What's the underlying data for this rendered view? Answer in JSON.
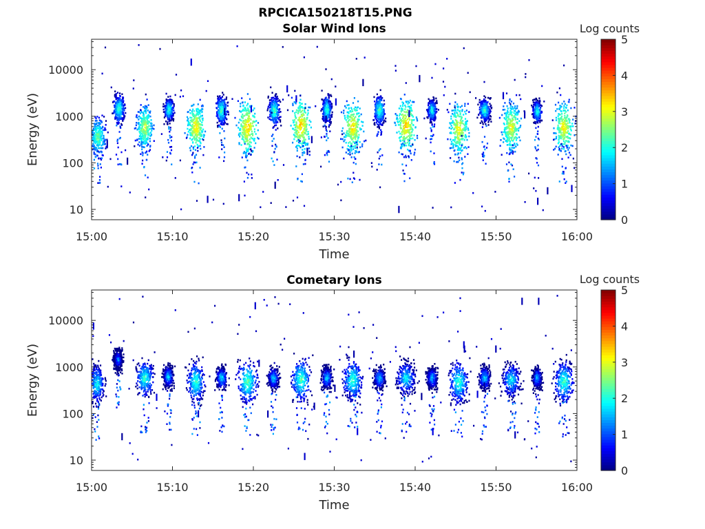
{
  "figure": {
    "title": "RPCICA150218T15.PNG"
  },
  "chart_data": [
    {
      "type": "heatmap",
      "title": "Solar Wind Ions",
      "xlabel": "Time",
      "ylabel": "Energy (eV)",
      "x_ticks": [
        "15:00",
        "15:10",
        "15:20",
        "15:30",
        "15:40",
        "15:50",
        "16:00"
      ],
      "x_range": [
        "15:00",
        "16:00"
      ],
      "y_scale": "log",
      "y_ticks": [
        10,
        100,
        1000,
        10000
      ],
      "y_range": [
        6,
        45000
      ],
      "colorbar": {
        "label": "Log counts",
        "range": [
          0,
          5
        ],
        "ticks": [
          0,
          1,
          2,
          3,
          4,
          5
        ],
        "colormap": "jet"
      },
      "grid": false,
      "clusters": [
        {
          "time_min": 0.7,
          "energy_ev": 380,
          "peak": 2.6,
          "t_span": 0.9,
          "e_span": 0.35
        },
        {
          "time_min": 3.3,
          "energy_ev": 1500,
          "peak": 2.4,
          "t_span": 0.6,
          "e_span": 0.25
        },
        {
          "time_min": 6.5,
          "energy_ev": 600,
          "peak": 3.0,
          "t_span": 0.9,
          "e_span": 0.4
        },
        {
          "time_min": 9.5,
          "energy_ev": 1450,
          "peak": 2.3,
          "t_span": 0.5,
          "e_span": 0.2
        },
        {
          "time_min": 12.8,
          "energy_ev": 600,
          "peak": 3.4,
          "t_span": 0.9,
          "e_span": 0.4
        },
        {
          "time_min": 16.0,
          "energy_ev": 1400,
          "peak": 2.4,
          "t_span": 0.6,
          "e_span": 0.25
        },
        {
          "time_min": 19.2,
          "energy_ev": 600,
          "peak": 3.5,
          "t_span": 1.0,
          "e_span": 0.45
        },
        {
          "time_min": 22.5,
          "energy_ev": 1350,
          "peak": 2.4,
          "t_span": 0.6,
          "e_span": 0.25
        },
        {
          "time_min": 25.8,
          "energy_ev": 650,
          "peak": 3.5,
          "t_span": 1.0,
          "e_span": 0.45
        },
        {
          "time_min": 29.0,
          "energy_ev": 1450,
          "peak": 2.3,
          "t_span": 0.5,
          "e_span": 0.25
        },
        {
          "time_min": 32.2,
          "energy_ev": 600,
          "peak": 3.4,
          "t_span": 1.0,
          "e_span": 0.45
        },
        {
          "time_min": 35.5,
          "energy_ev": 1400,
          "peak": 2.4,
          "t_span": 0.6,
          "e_span": 0.25
        },
        {
          "time_min": 38.8,
          "energy_ev": 650,
          "peak": 3.5,
          "t_span": 1.0,
          "e_span": 0.45
        },
        {
          "time_min": 42.0,
          "energy_ev": 1400,
          "peak": 2.2,
          "t_span": 0.5,
          "e_span": 0.2
        },
        {
          "time_min": 45.3,
          "energy_ev": 550,
          "peak": 3.3,
          "t_span": 1.0,
          "e_span": 0.45
        },
        {
          "time_min": 48.5,
          "energy_ev": 1400,
          "peak": 2.3,
          "t_span": 0.6,
          "e_span": 0.2
        },
        {
          "time_min": 51.8,
          "energy_ev": 600,
          "peak": 3.2,
          "t_span": 1.0,
          "e_span": 0.45
        },
        {
          "time_min": 55.0,
          "energy_ev": 1300,
          "peak": 2.2,
          "t_span": 0.5,
          "e_span": 0.2
        },
        {
          "time_min": 58.3,
          "energy_ev": 600,
          "peak": 3.3,
          "t_span": 1.0,
          "e_span": 0.45
        }
      ]
    },
    {
      "type": "heatmap",
      "title": "Cometary Ions",
      "xlabel": "Time",
      "ylabel": "Energy (eV)",
      "x_ticks": [
        "15:00",
        "15:10",
        "15:20",
        "15:30",
        "15:40",
        "15:50",
        "16:00"
      ],
      "x_range": [
        "15:00",
        "16:00"
      ],
      "y_scale": "log",
      "y_ticks": [
        10,
        100,
        1000,
        10000
      ],
      "y_range": [
        6,
        45000
      ],
      "colorbar": {
        "label": "Log counts",
        "range": [
          0,
          5
        ],
        "ticks": [
          0,
          1,
          2,
          3,
          4,
          5
        ],
        "colormap": "jet"
      },
      "grid": false,
      "clusters": [
        {
          "time_min": 0.6,
          "energy_ev": 450,
          "peak": 2.1,
          "t_span": 0.8,
          "e_span": 0.35
        },
        {
          "time_min": 3.2,
          "energy_ev": 1500,
          "peak": 1.4,
          "t_span": 0.5,
          "e_span": 0.2
        },
        {
          "time_min": 6.5,
          "energy_ev": 600,
          "peak": 2.3,
          "t_span": 0.9,
          "e_span": 0.3
        },
        {
          "time_min": 9.4,
          "energy_ev": 650,
          "peak": 1.8,
          "t_span": 0.6,
          "e_span": 0.2
        },
        {
          "time_min": 12.8,
          "energy_ev": 500,
          "peak": 2.3,
          "t_span": 0.9,
          "e_span": 0.35
        },
        {
          "time_min": 16.0,
          "energy_ev": 600,
          "peak": 1.9,
          "t_span": 0.6,
          "e_span": 0.2
        },
        {
          "time_min": 19.2,
          "energy_ev": 500,
          "peak": 2.5,
          "t_span": 1.0,
          "e_span": 0.35
        },
        {
          "time_min": 22.4,
          "energy_ev": 600,
          "peak": 1.8,
          "t_span": 0.6,
          "e_span": 0.2
        },
        {
          "time_min": 25.8,
          "energy_ev": 550,
          "peak": 2.4,
          "t_span": 1.0,
          "e_span": 0.35
        },
        {
          "time_min": 29.0,
          "energy_ev": 600,
          "peak": 1.8,
          "t_span": 0.6,
          "e_span": 0.2
        },
        {
          "time_min": 32.2,
          "energy_ev": 550,
          "peak": 2.3,
          "t_span": 1.0,
          "e_span": 0.35
        },
        {
          "time_min": 35.5,
          "energy_ev": 600,
          "peak": 1.8,
          "t_span": 0.6,
          "e_span": 0.2
        },
        {
          "time_min": 38.8,
          "energy_ev": 600,
          "peak": 2.0,
          "t_span": 1.0,
          "e_span": 0.3
        },
        {
          "time_min": 42.0,
          "energy_ev": 600,
          "peak": 1.7,
          "t_span": 0.6,
          "e_span": 0.2
        },
        {
          "time_min": 45.3,
          "energy_ev": 500,
          "peak": 2.3,
          "t_span": 1.0,
          "e_span": 0.35
        },
        {
          "time_min": 48.5,
          "energy_ev": 600,
          "peak": 1.9,
          "t_span": 0.6,
          "e_span": 0.2
        },
        {
          "time_min": 51.8,
          "energy_ev": 550,
          "peak": 2.0,
          "t_span": 1.0,
          "e_span": 0.3
        },
        {
          "time_min": 55.0,
          "energy_ev": 600,
          "peak": 1.7,
          "t_span": 0.5,
          "e_span": 0.2
        },
        {
          "time_min": 58.3,
          "energy_ev": 500,
          "peak": 2.3,
          "t_span": 1.0,
          "e_span": 0.35
        }
      ]
    }
  ]
}
